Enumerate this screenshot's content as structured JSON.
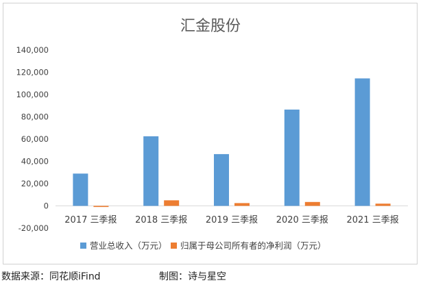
{
  "chart_data": {
    "type": "bar",
    "title": "汇金股份",
    "categories": [
      "2017 三季报",
      "2018 三季报",
      "2019 三季报",
      "2020 三季报",
      "2021 三季报"
    ],
    "series": [
      {
        "name": "营业总收入（万元）",
        "color": "#5b9bd5",
        "values": [
          29000,
          62500,
          46500,
          86500,
          114500
        ]
      },
      {
        "name": "归属于母公司所有者的净利润（万元）",
        "color": "#ed7d31",
        "values": [
          -1000,
          5000,
          2500,
          3500,
          2000
        ]
      }
    ],
    "ylim": [
      -20000,
      140000
    ],
    "yticks": [
      -20000,
      0,
      20000,
      40000,
      60000,
      80000,
      100000,
      120000,
      140000
    ],
    "ytick_labels": [
      "-20,000",
      "0",
      "20,000",
      "40,000",
      "60,000",
      "80,000",
      "100,000",
      "120,000",
      "140,000"
    ],
    "grid": false,
    "legend": "bottom"
  },
  "footer": {
    "source": "数据来源：同花顺iFind",
    "maker": "制图：诗与星空"
  }
}
